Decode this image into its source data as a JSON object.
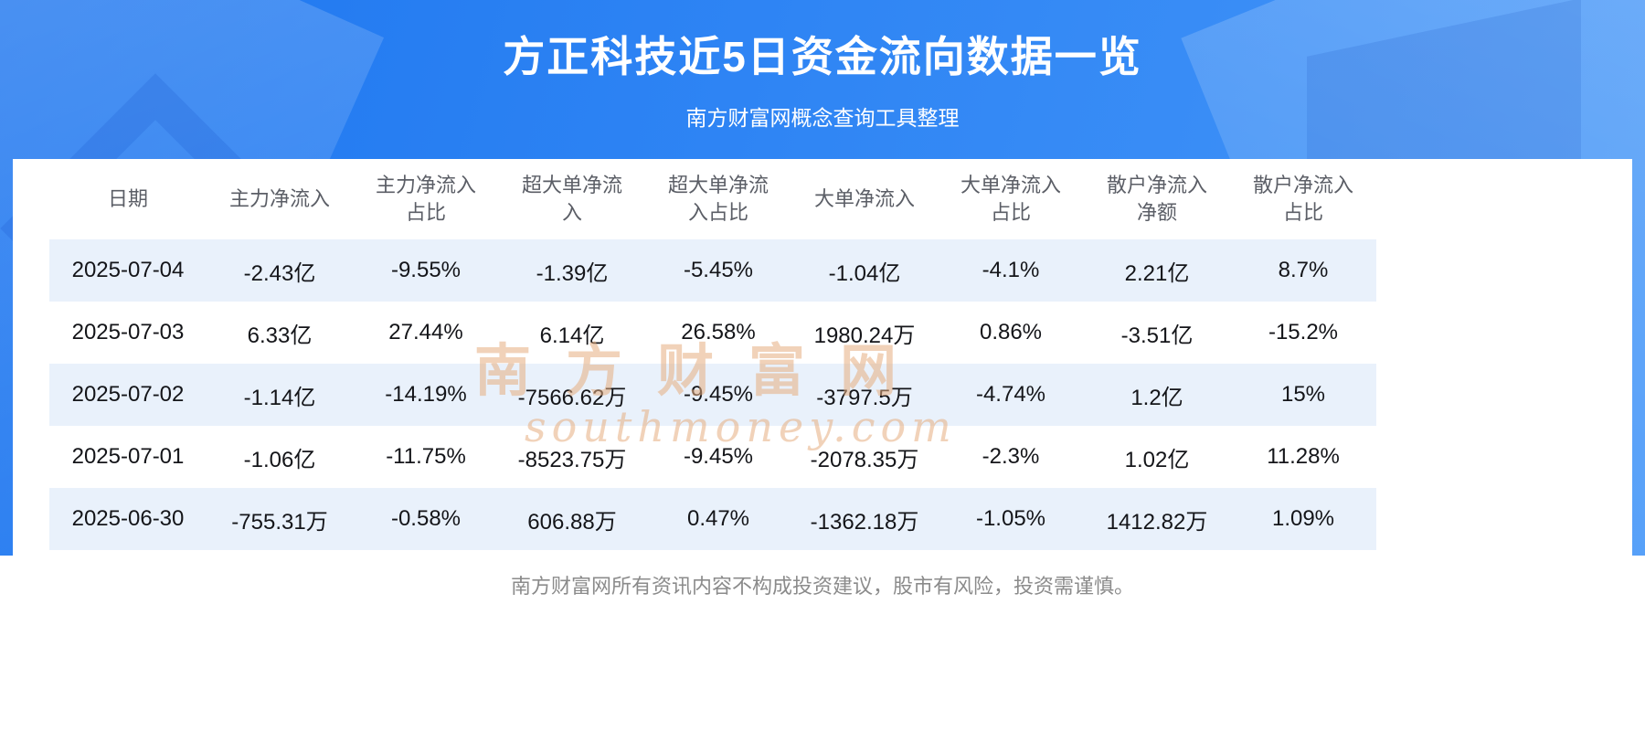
{
  "chart_data": {
    "type": "table",
    "title": "方正科技近5日资金流向数据一览",
    "subtitle": "南方财富网概念查询工具整理",
    "columns": [
      "日期",
      "主力净流入",
      "主力净流入占比",
      "超大单净流入",
      "超大单净流入占比",
      "大单净流入",
      "大单净流入占比",
      "散户净流入净额",
      "散户净流入占比"
    ],
    "rows": [
      [
        "2025-07-04",
        "-2.43亿",
        "-9.55%",
        "-1.39亿",
        "-5.45%",
        "-1.04亿",
        "-4.1%",
        "2.21亿",
        "8.7%"
      ],
      [
        "2025-07-03",
        "6.33亿",
        "27.44%",
        "6.14亿",
        "26.58%",
        "1980.24万",
        "0.86%",
        "-3.51亿",
        "-15.2%"
      ],
      [
        "2025-07-02",
        "-1.14亿",
        "-14.19%",
        "-7566.62万",
        "-9.45%",
        "-3797.5万",
        "-4.74%",
        "1.2亿",
        "15%"
      ],
      [
        "2025-07-01",
        "-1.06亿",
        "-11.75%",
        "-8523.75万",
        "-9.45%",
        "-2078.35万",
        "-2.3%",
        "1.02亿",
        "11.28%"
      ],
      [
        "2025-06-30",
        "-755.31万",
        "-0.58%",
        "606.88万",
        "0.47%",
        "-1362.18万",
        "-1.05%",
        "1412.82万",
        "1.09%"
      ]
    ],
    "layout": {
      "striped_rows": "odd",
      "grid": false
    }
  },
  "watermark": {
    "line1": "南方财富网",
    "line2": "southmoney.com"
  },
  "footer": {
    "disclaimer": "南方财富网所有资讯内容不构成投资建议，股市有风险，投资需谨慎。"
  },
  "colors": {
    "hero_gradient_start": "#1e76ef",
    "hero_gradient_end": "#4697f8",
    "row_stripe": "#e9f1fb",
    "title_text": "#ffffff",
    "table_header_text": "#5b5e66",
    "table_cell_text": "#141519",
    "watermark": "#e5ad80",
    "footer_text": "#8b8b8b"
  }
}
